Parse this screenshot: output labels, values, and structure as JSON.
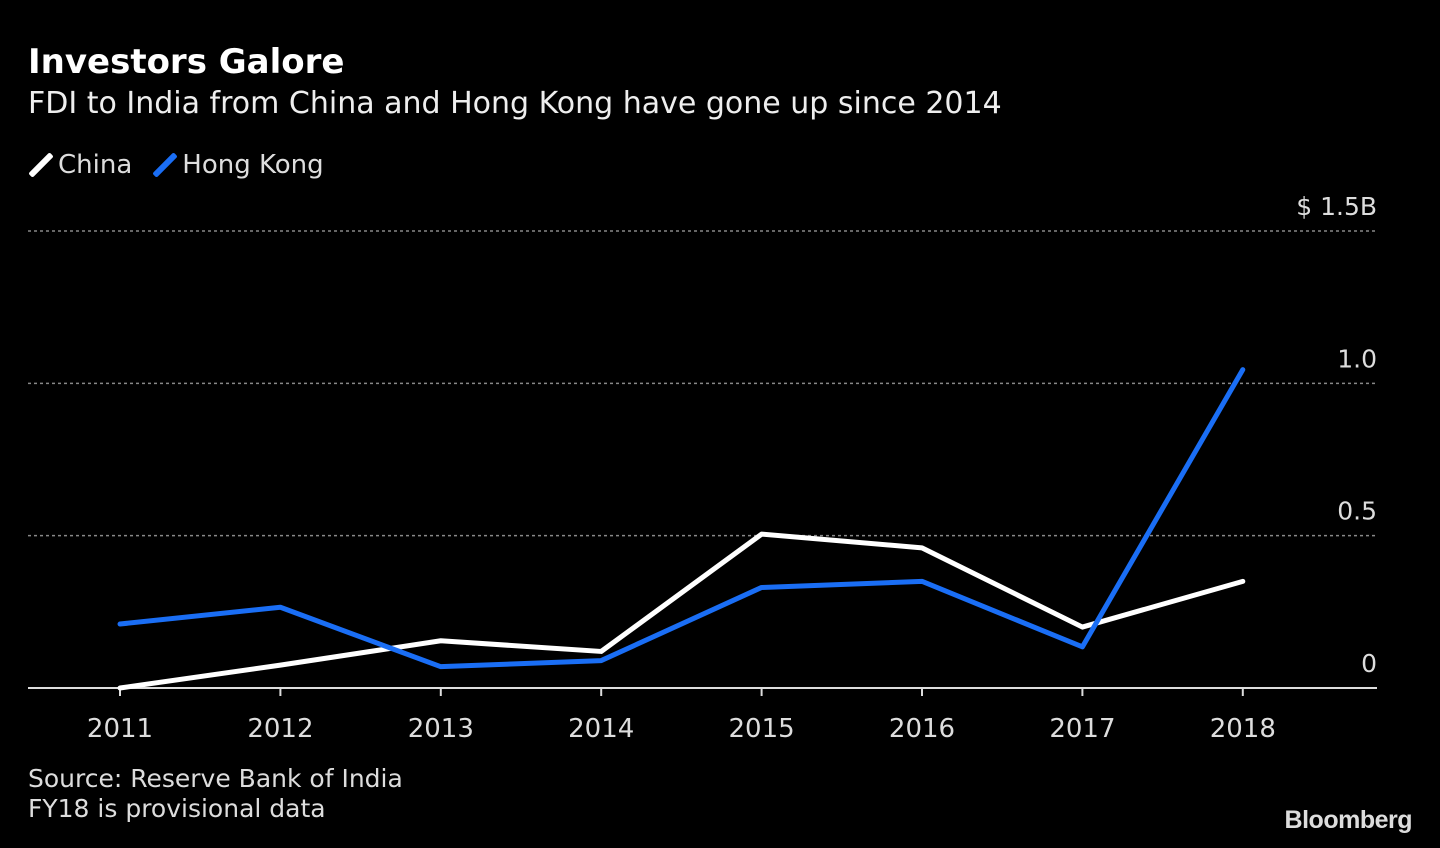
{
  "chart_data": {
    "type": "line",
    "title": "Investors Galore",
    "subtitle": "FDI to India from China and Hong Kong have gone up since 2014",
    "x": [
      "2011",
      "2012",
      "2013",
      "2014",
      "2015",
      "2016",
      "2017",
      "2018"
    ],
    "series": [
      {
        "name": "China",
        "color": "#ffffff",
        "values": [
          0.0,
          0.075,
          0.155,
          0.12,
          0.505,
          0.46,
          0.2,
          0.35
        ]
      },
      {
        "name": "Hong Kong",
        "color": "#1a6ef5",
        "values": [
          0.21,
          0.265,
          0.07,
          0.09,
          0.33,
          0.35,
          0.135,
          1.045
        ]
      }
    ],
    "yticks": [
      0,
      0.5,
      1.0,
      1.5
    ],
    "ytick_labels": [
      "0",
      "0.5",
      "1.0",
      "$ 1.5B"
    ],
    "ylim": [
      0,
      1.5
    ],
    "grid": true,
    "legend": "top-left",
    "source": "Source: Reserve Bank of India",
    "note": "FY18 is provisional data",
    "brand": "Bloomberg"
  }
}
